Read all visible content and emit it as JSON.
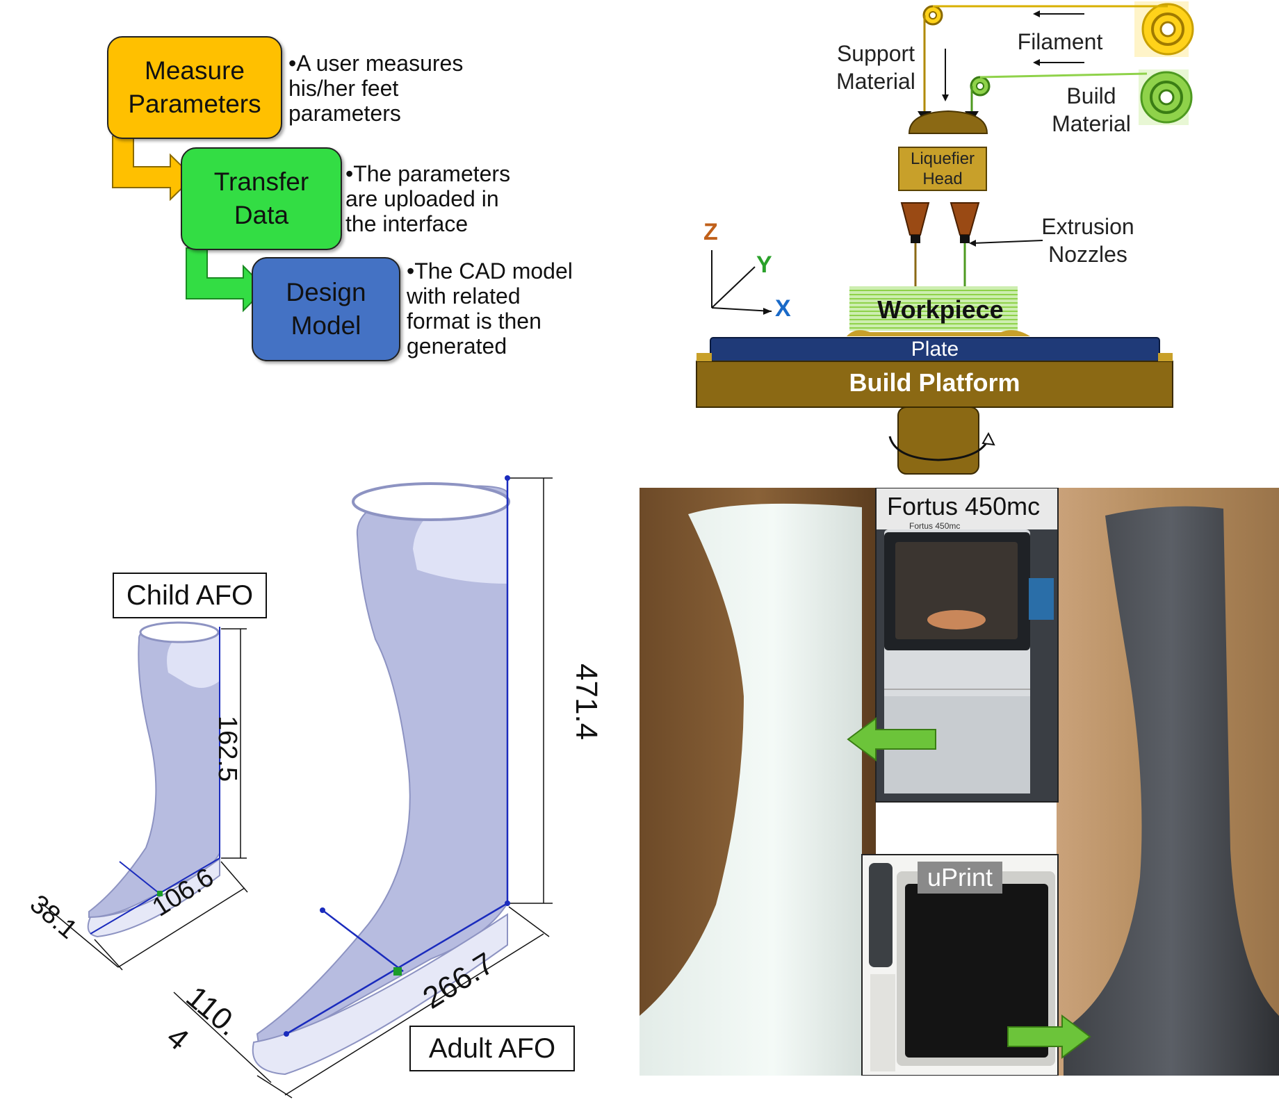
{
  "flowchart": {
    "steps": [
      {
        "label": "Measure\nParameters",
        "note": "•A user measures\nhis/her feet\nparameters",
        "color": "#ffc000"
      },
      {
        "label": "Transfer\nData",
        "note": "•The parameters\nare uploaded in\nthe interface",
        "color": "#33dd44"
      },
      {
        "label": "Design\nModel",
        "note": "•The CAD model\nwith related\nformat is then\ngenerated",
        "color": "#4472c4"
      }
    ]
  },
  "printer_diagram": {
    "support_material": "Support\nMaterial",
    "filament": "Filament",
    "build_material": "Build\nMaterial",
    "liquefier_head": "Liquefier\nHead",
    "extrusion_nozzles": "Extrusion\nNozzles",
    "axis_z": "Z",
    "axis_y": "Y",
    "axis_x": "X",
    "workpiece": "Workpiece",
    "plate": "Plate",
    "build_platform": "Build Platform",
    "colors": {
      "gold": "#8b6914",
      "plate": "#1f3a78",
      "support_spool": "#ffd21a",
      "build_spool": "#8fd24a",
      "workpiece": "#cdeeb0"
    }
  },
  "cad_model": {
    "child_label": "Child AFO",
    "adult_label": "Adult AFO",
    "child_height": "162.5",
    "child_length": "106.6",
    "child_width": "38.1",
    "adult_height": "471.4",
    "adult_length": "266.7",
    "adult_width_a": "110.",
    "adult_width_b": "4",
    "model_color": "#b7bce0",
    "dim_line_color": "#1a2bbd"
  },
  "photos": {
    "fortus_title": "Fortus 450mc",
    "fortus_brand": "Fortus 450mc",
    "uprint_title": "uPrint",
    "arrow_color": "#6cc43a"
  }
}
